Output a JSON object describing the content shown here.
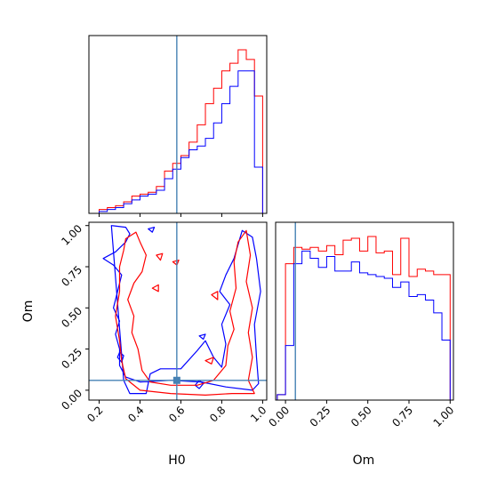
{
  "colors": {
    "series_a": "#ff0000",
    "series_b": "#0000ff",
    "truth": "#4682b4",
    "axes": "#000000"
  },
  "chart_data": [
    {
      "type": "histogram",
      "panel": "H0-marginal",
      "xlim": [
        0.15,
        1.02
      ],
      "bins": [
        0.2,
        0.24,
        0.28,
        0.32,
        0.36,
        0.4,
        0.44,
        0.48,
        0.52,
        0.56,
        0.6,
        0.64,
        0.68,
        0.72,
        0.76,
        0.8,
        0.84,
        0.88,
        0.92,
        0.96,
        1.0
      ],
      "series": [
        {
          "color": "#ff0000",
          "values": [
            2,
            3,
            4,
            6,
            9,
            10,
            11,
            14,
            22,
            26,
            30,
            37,
            46,
            57,
            65,
            74,
            78,
            85,
            80,
            61
          ]
        },
        {
          "color": "#0000ff",
          "values": [
            1,
            2,
            3,
            5,
            7,
            9,
            10,
            12,
            18,
            23,
            29,
            33,
            35,
            39,
            47,
            57,
            66,
            74,
            74,
            24
          ]
        }
      ],
      "truth": 0.58,
      "y_ticks": false,
      "xticklabels": false
    },
    {
      "type": "contour",
      "panel": "H0-Om-2D",
      "xlabel": "H0",
      "ylabel": "Om",
      "xlim": [
        0.15,
        1.02
      ],
      "ylim": [
        -0.06,
        1.02
      ],
      "xticks": [
        "0.2",
        "0.4",
        "0.6",
        "0.8",
        "1.0"
      ],
      "xtick_values": [
        0.2,
        0.4,
        0.6,
        0.8,
        1.0
      ],
      "yticks": [
        "0.00",
        "0.25",
        "0.50",
        "0.75",
        "1.00"
      ],
      "ytick_values": [
        0.0,
        0.25,
        0.5,
        0.75,
        1.0
      ],
      "truth": {
        "x": 0.58,
        "y": 0.06
      },
      "contours": [
        {
          "color": "#0000ff",
          "points": [
            [
              0.26,
              1.0
            ],
            [
              0.33,
              0.99
            ],
            [
              0.35,
              0.95
            ],
            [
              0.33,
              0.9
            ],
            [
              0.28,
              0.84
            ],
            [
              0.22,
              0.8
            ],
            [
              0.27,
              0.76
            ],
            [
              0.31,
              0.7
            ],
            [
              0.29,
              0.6
            ],
            [
              0.27,
              0.5
            ],
            [
              0.3,
              0.42
            ],
            [
              0.28,
              0.34
            ],
            [
              0.3,
              0.25
            ],
            [
              0.3,
              0.15
            ],
            [
              0.33,
              0.08
            ],
            [
              0.4,
              0.05
            ],
            [
              0.55,
              0.06
            ],
            [
              0.7,
              0.05
            ],
            [
              0.82,
              0.02
            ],
            [
              0.95,
              0.0
            ],
            [
              0.98,
              0.04
            ],
            [
              0.97,
              0.2
            ],
            [
              0.96,
              0.4
            ],
            [
              0.99,
              0.6
            ],
            [
              0.97,
              0.8
            ],
            [
              0.95,
              0.93
            ],
            [
              0.9,
              0.97
            ],
            [
              0.86,
              0.8
            ],
            [
              0.82,
              0.7
            ],
            [
              0.79,
              0.6
            ],
            [
              0.84,
              0.52
            ],
            [
              0.8,
              0.4
            ],
            [
              0.82,
              0.28
            ],
            [
              0.8,
              0.14
            ],
            [
              0.76,
              0.2
            ],
            [
              0.72,
              0.3
            ],
            [
              0.68,
              0.24
            ],
            [
              0.6,
              0.13
            ],
            [
              0.5,
              0.13
            ],
            [
              0.45,
              0.1
            ],
            [
              0.43,
              -0.02
            ],
            [
              0.35,
              -0.02
            ],
            [
              0.32,
              0.06
            ]
          ]
        },
        {
          "color": "#0000ff",
          "points": [
            [
              0.44,
              0.98
            ],
            [
              0.46,
              0.96
            ],
            [
              0.47,
              0.99
            ]
          ]
        },
        {
          "color": "#0000ff",
          "points": [
            [
              0.29,
              0.2
            ],
            [
              0.31,
              0.17
            ],
            [
              0.32,
              0.21
            ],
            [
              0.3,
              0.23
            ]
          ]
        },
        {
          "color": "#0000ff",
          "points": [
            [
              0.67,
              0.03
            ],
            [
              0.69,
              0.01
            ],
            [
              0.71,
              0.04
            ],
            [
              0.69,
              0.06
            ]
          ]
        },
        {
          "color": "#0000ff",
          "points": [
            [
              0.69,
              0.33
            ],
            [
              0.71,
              0.31
            ],
            [
              0.72,
              0.34
            ]
          ]
        },
        {
          "color": "#ff0000",
          "points": [
            [
              0.33,
              0.92
            ],
            [
              0.38,
              0.96
            ],
            [
              0.4,
              0.9
            ],
            [
              0.43,
              0.82
            ],
            [
              0.41,
              0.72
            ],
            [
              0.37,
              0.65
            ],
            [
              0.34,
              0.55
            ],
            [
              0.37,
              0.45
            ],
            [
              0.36,
              0.35
            ],
            [
              0.39,
              0.25
            ],
            [
              0.41,
              0.12
            ],
            [
              0.45,
              0.05
            ],
            [
              0.55,
              0.03
            ],
            [
              0.68,
              0.03
            ],
            [
              0.76,
              0.06
            ],
            [
              0.82,
              0.15
            ],
            [
              0.83,
              0.27
            ],
            [
              0.86,
              0.37
            ],
            [
              0.84,
              0.48
            ],
            [
              0.87,
              0.62
            ],
            [
              0.86,
              0.78
            ],
            [
              0.88,
              0.9
            ],
            [
              0.92,
              0.97
            ],
            [
              0.94,
              0.82
            ],
            [
              0.92,
              0.66
            ],
            [
              0.95,
              0.5
            ],
            [
              0.93,
              0.35
            ],
            [
              0.95,
              0.2
            ],
            [
              0.93,
              0.06
            ],
            [
              0.96,
              -0.02
            ],
            [
              0.85,
              -0.02
            ],
            [
              0.72,
              -0.03
            ],
            [
              0.55,
              -0.02
            ],
            [
              0.4,
              0.0
            ],
            [
              0.33,
              0.07
            ],
            [
              0.31,
              0.18
            ],
            [
              0.3,
              0.3
            ],
            [
              0.28,
              0.45
            ],
            [
              0.3,
              0.6
            ],
            [
              0.3,
              0.75
            ],
            [
              0.32,
              0.85
            ]
          ]
        },
        {
          "color": "#ff0000",
          "points": [
            [
              0.56,
              0.78
            ],
            [
              0.58,
              0.76
            ],
            [
              0.59,
              0.79
            ]
          ]
        },
        {
          "color": "#ff0000",
          "points": [
            [
              0.48,
              0.82
            ],
            [
              0.5,
              0.79
            ],
            [
              0.51,
              0.83
            ]
          ]
        },
        {
          "color": "#ff0000",
          "points": [
            [
              0.46,
              0.62
            ],
            [
              0.49,
              0.6
            ],
            [
              0.49,
              0.64
            ]
          ]
        },
        {
          "color": "#ff0000",
          "points": [
            [
              0.75,
              0.58
            ],
            [
              0.78,
              0.55
            ],
            [
              0.78,
              0.6
            ]
          ]
        },
        {
          "color": "#ff0000",
          "points": [
            [
              0.72,
              0.18
            ],
            [
              0.75,
              0.16
            ],
            [
              0.76,
              0.2
            ]
          ]
        }
      ]
    },
    {
      "type": "histogram",
      "panel": "Om-marginal",
      "xlabel": "Om",
      "xlim": [
        -0.06,
        1.02
      ],
      "xticks": [
        "0.00",
        "0.25",
        "0.50",
        "0.75",
        "1.00"
      ],
      "xtick_values": [
        0.0,
        0.25,
        0.5,
        0.75,
        1.0
      ],
      "bins": [
        -0.05,
        0.0,
        0.05,
        0.1,
        0.15,
        0.2,
        0.25,
        0.3,
        0.35,
        0.4,
        0.45,
        0.5,
        0.55,
        0.6,
        0.65,
        0.7,
        0.75,
        0.8,
        0.85,
        0.9,
        0.95,
        1.0
      ],
      "series": [
        {
          "color": "#ff0000",
          "values": [
            3,
            75,
            84,
            83,
            84,
            82,
            85,
            80,
            88,
            89,
            82,
            90,
            81,
            82,
            69,
            89,
            68,
            72,
            71,
            69,
            69
          ]
        },
        {
          "color": "#0000ff",
          "values": [
            3,
            30,
            75,
            82,
            78,
            73,
            79,
            71,
            71,
            76,
            70,
            69,
            68,
            67,
            62,
            65,
            57,
            58,
            55,
            48,
            33
          ]
        }
      ],
      "truth": 0.06,
      "y_ticks": false
    }
  ]
}
